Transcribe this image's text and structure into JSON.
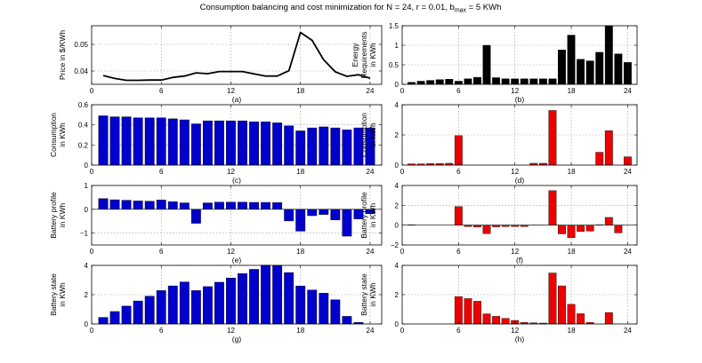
{
  "figure": {
    "title_main": "Consumption balancing and cost minimization for N = 24, r = 0.01, b",
    "title_sub": "max",
    "title_tail": " = 5 KWh"
  },
  "chart_data": [
    {
      "id": "a",
      "type": "line",
      "caption": "(a)",
      "color": "#000000",
      "ylabel": [
        "Price in $/KWh"
      ],
      "xlim": [
        0,
        25
      ],
      "ylim": [
        0.035,
        0.057
      ],
      "yticks": [
        0.04,
        0.05
      ],
      "yticklabels": [
        "0.04",
        "0.05"
      ],
      "xticks": [
        0,
        6,
        12,
        18,
        24
      ],
      "grid": true,
      "x": [
        1,
        2,
        3,
        4,
        5,
        6,
        7,
        8,
        9,
        10,
        11,
        12,
        13,
        14,
        15,
        16,
        17,
        18,
        19,
        20,
        21,
        22,
        23,
        24
      ],
      "values": [
        0.0383,
        0.0372,
        0.0365,
        0.0365,
        0.0366,
        0.0366,
        0.0376,
        0.0381,
        0.0393,
        0.039,
        0.0398,
        0.0398,
        0.0398,
        0.0389,
        0.0381,
        0.0381,
        0.0401,
        0.0545,
        0.0515,
        0.0442,
        0.0397,
        0.038,
        0.0386,
        0.0373
      ]
    },
    {
      "id": "b",
      "type": "bar",
      "caption": "(b)",
      "color": "#000000",
      "ylabel": [
        "Energy",
        "Requirements",
        "in KWh"
      ],
      "xlim": [
        0,
        25
      ],
      "ylim": [
        0,
        1.5
      ],
      "yticks": [
        0,
        0.5,
        1,
        1.5
      ],
      "yticklabels": [
        "0",
        "0.5",
        "1",
        "1.5"
      ],
      "xticks": [
        0,
        6,
        12,
        18,
        24
      ],
      "grid": true,
      "x": [
        1,
        2,
        3,
        4,
        5,
        6,
        7,
        8,
        9,
        10,
        11,
        12,
        13,
        14,
        15,
        16,
        17,
        18,
        19,
        20,
        21,
        22,
        23,
        24
      ],
      "values": [
        0.05,
        0.08,
        0.1,
        0.12,
        0.13,
        0.08,
        0.14,
        0.18,
        1.0,
        0.17,
        0.14,
        0.14,
        0.14,
        0.14,
        0.14,
        0.14,
        0.88,
        1.26,
        0.64,
        0.6,
        0.82,
        1.5,
        0.78,
        0.56
      ]
    },
    {
      "id": "c",
      "type": "bar",
      "caption": "(c)",
      "color": "#0000cc",
      "ylabel": [
        "Consumption",
        "in KWh"
      ],
      "xlim": [
        0,
        25
      ],
      "ylim": [
        0,
        0.6
      ],
      "yticks": [
        0,
        0.2,
        0.4,
        0.6
      ],
      "yticklabels": [
        "0",
        "0.2",
        "0.4",
        "0.6"
      ],
      "xticks": [
        0,
        6,
        12,
        18,
        24
      ],
      "grid": true,
      "x": [
        1,
        2,
        3,
        4,
        5,
        6,
        7,
        8,
        9,
        10,
        11,
        12,
        13,
        14,
        15,
        16,
        17,
        18,
        19,
        20,
        21,
        22,
        23,
        24
      ],
      "values": [
        0.49,
        0.48,
        0.48,
        0.47,
        0.47,
        0.47,
        0.46,
        0.45,
        0.41,
        0.44,
        0.44,
        0.44,
        0.44,
        0.43,
        0.43,
        0.42,
        0.39,
        0.34,
        0.37,
        0.38,
        0.37,
        0.35,
        0.37,
        0.37
      ]
    },
    {
      "id": "d",
      "type": "bar",
      "caption": "(d)",
      "color": "#ee0000",
      "ylabel": [
        "Consumption",
        "in KWh"
      ],
      "xlim": [
        0,
        25
      ],
      "ylim": [
        0,
        4
      ],
      "yticks": [
        0,
        2,
        4
      ],
      "yticklabels": [
        "0",
        "2",
        "4"
      ],
      "xticks": [
        0,
        6,
        12,
        18,
        24
      ],
      "grid": true,
      "x": [
        1,
        2,
        3,
        4,
        5,
        6,
        7,
        8,
        9,
        10,
        11,
        12,
        13,
        14,
        15,
        16,
        17,
        18,
        19,
        20,
        21,
        22,
        23,
        24
      ],
      "values": [
        0.08,
        0.08,
        0.1,
        0.1,
        0.12,
        1.95,
        0,
        0,
        0,
        0,
        0,
        0,
        0,
        0.12,
        0.12,
        3.62,
        0,
        0,
        0,
        0,
        0.85,
        2.28,
        0,
        0.55
      ]
    },
    {
      "id": "e",
      "type": "bar",
      "caption": "(e)",
      "color": "#0000cc",
      "ylabel": [
        "Battery profile",
        "in KWh"
      ],
      "xlim": [
        0,
        25
      ],
      "ylim": [
        -1.5,
        1
      ],
      "yticks": [
        -1,
        0,
        1
      ],
      "yticklabels": [
        "−1",
        "0",
        "1"
      ],
      "xticks": [
        0,
        6,
        12,
        18,
        24
      ],
      "grid": true,
      "x": [
        1,
        2,
        3,
        4,
        5,
        6,
        7,
        8,
        9,
        10,
        11,
        12,
        13,
        14,
        15,
        16,
        17,
        18,
        19,
        20,
        21,
        22,
        23,
        24
      ],
      "values": [
        0.45,
        0.4,
        0.38,
        0.35,
        0.34,
        0.39,
        0.32,
        0.27,
        -0.59,
        0.27,
        0.3,
        0.3,
        0.3,
        0.29,
        0.29,
        0.28,
        -0.49,
        -0.92,
        -0.27,
        -0.22,
        -0.45,
        -1.13,
        -0.41,
        -0.19
      ]
    },
    {
      "id": "f",
      "type": "bar",
      "caption": "(f)",
      "color": "#ee0000",
      "ylabel": [
        "Battery profile",
        "in KWh"
      ],
      "xlim": [
        0,
        25
      ],
      "ylim": [
        -2,
        4
      ],
      "yticks": [
        -2,
        0,
        2,
        4
      ],
      "yticklabels": [
        "−2",
        "0",
        "2",
        "4"
      ],
      "xticks": [
        0,
        6,
        12,
        18,
        24
      ],
      "grid": true,
      "x": [
        1,
        2,
        3,
        4,
        5,
        6,
        7,
        8,
        9,
        10,
        11,
        12,
        13,
        14,
        15,
        16,
        17,
        18,
        19,
        20,
        21,
        22,
        23,
        24
      ],
      "values": [
        0.03,
        0,
        0,
        0,
        0,
        1.87,
        -0.14,
        -0.18,
        -0.86,
        -0.17,
        -0.14,
        -0.14,
        -0.14,
        -0.02,
        -0.02,
        3.48,
        -0.88,
        -1.26,
        -0.64,
        -0.6,
        0.03,
        0.78,
        -0.78,
        0
      ]
    },
    {
      "id": "g",
      "type": "bar",
      "caption": "(g)",
      "color": "#0000cc",
      "ylabel": [
        "Battery state",
        "in KWh"
      ],
      "xlim": [
        0,
        25
      ],
      "ylim": [
        0,
        4
      ],
      "yticks": [
        0,
        2,
        4
      ],
      "yticklabels": [
        "0",
        "2",
        "4"
      ],
      "xticks": [
        0,
        6,
        12,
        18,
        24
      ],
      "grid": true,
      "x": [
        1,
        2,
        3,
        4,
        5,
        6,
        7,
        8,
        9,
        10,
        11,
        12,
        13,
        14,
        15,
        16,
        17,
        18,
        19,
        20,
        21,
        22,
        23,
        24
      ],
      "values": [
        0.45,
        0.85,
        1.22,
        1.57,
        1.9,
        2.28,
        2.6,
        2.87,
        2.28,
        2.55,
        2.85,
        3.14,
        3.44,
        3.73,
        4.02,
        4.0,
        3.51,
        2.59,
        2.32,
        2.1,
        1.65,
        0.52,
        0.11,
        0
      ]
    },
    {
      "id": "h",
      "type": "bar",
      "caption": "(h)",
      "color": "#ee0000",
      "ylabel": [
        "Battery state",
        "in KWh"
      ],
      "xlim": [
        0,
        25
      ],
      "ylim": [
        0,
        4
      ],
      "yticks": [
        0,
        2,
        4
      ],
      "yticklabels": [
        "0",
        "2",
        "4"
      ],
      "xticks": [
        0,
        6,
        12,
        18,
        24
      ],
      "grid": true,
      "x": [
        1,
        2,
        3,
        4,
        5,
        6,
        7,
        8,
        9,
        10,
        11,
        12,
        13,
        14,
        15,
        16,
        17,
        18,
        19,
        20,
        21,
        22,
        23,
        24
      ],
      "values": [
        0,
        0,
        0,
        0,
        0,
        1.87,
        1.73,
        1.55,
        0.69,
        0.52,
        0.38,
        0.24,
        0.1,
        0.08,
        0.06,
        3.48,
        2.6,
        1.34,
        0.7,
        0.1,
        0,
        0.78,
        0,
        0
      ]
    }
  ]
}
